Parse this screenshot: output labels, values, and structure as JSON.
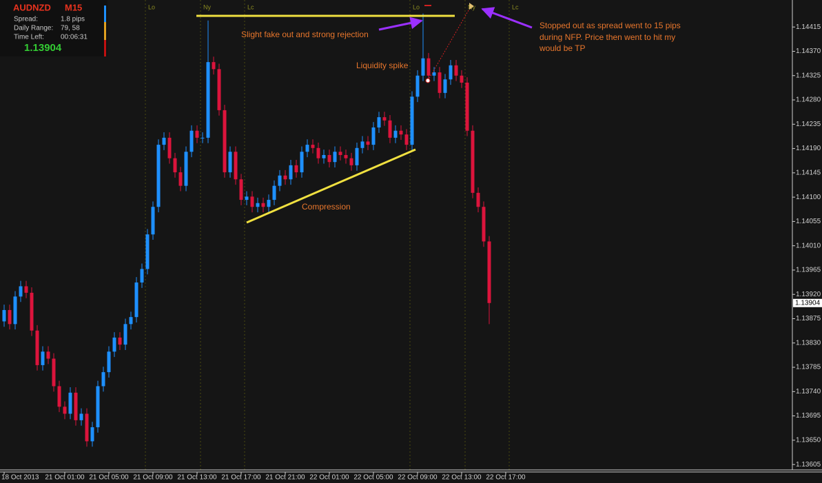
{
  "chart_data": {
    "type": "candlestick",
    "symbol": "AUDNZD",
    "timeframe": "M15",
    "info_rows": [
      [
        "Spread:",
        "1.8 pips"
      ],
      [
        "Daily Range:",
        "79, 58"
      ],
      [
        "Time Left:",
        "00:06:31"
      ]
    ],
    "last_price": 1.13904,
    "session_labels": [
      "Lo",
      "Ny",
      "Lc",
      "Lo",
      "Ny",
      "Lc"
    ],
    "annotations": [
      "Slight fake out and strong rejection",
      "Liquidity spike",
      "Compression",
      "Stopped out as spread went to 15 pips",
      "during NFP. Price then went to hit my",
      "would be TP"
    ],
    "up_color": "#1e90ff",
    "down_color": "#dc143c",
    "ylim": [
      1.13595,
      1.14465
    ],
    "yticks": [
      1.13605,
      {
        "value": 1.1365,
        "label": "1.13650"
      },
      1.13695,
      {
        "value": 1.1374,
        "label": "1.13740"
      },
      1.13785,
      {
        "value": 1.1383,
        "label": "1.13830"
      },
      1.13875,
      {
        "value": 1.1392,
        "label": "1.13920"
      },
      1.13965,
      {
        "value": 1.1401,
        "label": "1.14010"
      },
      1.14055,
      {
        "value": 1.141,
        "label": "1.14100"
      },
      1.14145,
      {
        "value": 1.1419,
        "label": "1.14190"
      },
      1.14235,
      {
        "value": 1.1428,
        "label": "1.14280"
      },
      1.14325,
      {
        "value": 1.1437,
        "label": "1.14370"
      },
      1.14415
    ],
    "categories": [
      "18 Oct 2013",
      null,
      null,
      null,
      null,
      null,
      null,
      null,
      null,
      null,
      null,
      "21 Oct 01:00",
      null,
      null,
      null,
      null,
      null,
      null,
      null,
      "21 Oct 05:00",
      null,
      null,
      null,
      null,
      null,
      null,
      null,
      "21 Oct 09:00",
      null,
      null,
      null,
      null,
      null,
      null,
      null,
      "21 Oct 13:00",
      null,
      null,
      null,
      null,
      null,
      null,
      null,
      "21 Oct 17:00",
      null,
      null,
      null,
      null,
      null,
      null,
      null,
      "21 Oct 21:00",
      null,
      null,
      null,
      null,
      null,
      null,
      null,
      "22 Oct 01:00",
      null,
      null,
      null,
      null,
      null,
      null,
      null,
      "22 Oct 05:00",
      null,
      null,
      null,
      null,
      null,
      null,
      null,
      "22 Oct 09:00",
      null,
      null,
      null,
      null,
      null,
      null,
      null,
      "22 Oct 13:00",
      null,
      null,
      null,
      null,
      null,
      null,
      null,
      "22 Oct 17:00"
    ],
    "open": [
      1.1387,
      1.13891,
      1.13865,
      1.13916,
      1.13935,
      1.13923,
      1.13853,
      1.13789,
      1.13814,
      1.13801,
      1.1375,
      1.13712,
      1.13699,
      1.13738,
      1.13687,
      1.13699,
      1.13648,
      1.13674,
      1.1375,
      1.13776,
      1.13814,
      1.1384,
      1.13827,
      1.13865,
      1.13878,
      1.13942,
      1.13967,
      1.14031,
      1.14082,
      1.14197,
      1.1421,
      1.14172,
      1.14146,
      1.14121,
      1.14184,
      1.14223,
      1.1421,
      1.1421,
      1.1435,
      1.14337,
      1.14261,
      1.14146,
      1.14184,
      1.14133,
      1.14095,
      1.14101,
      1.14082,
      1.14089,
      1.14082,
      1.14095,
      1.14121,
      1.1414,
      1.14133,
      1.14159,
      1.14146,
      1.14184,
      1.14197,
      1.14191,
      1.14172,
      1.14178,
      1.14165,
      1.14184,
      1.14178,
      1.14172,
      1.14159,
      1.14191,
      1.14203,
      1.14197,
      1.14229,
      1.14248,
      1.14242,
      1.1421,
      1.14223,
      1.14216,
      1.14197,
      1.14286,
      1.14325,
      1.14357,
      1.14325,
      1.14331,
      1.14293,
      1.14318,
      1.14344,
      1.14325,
      1.14312,
      1.14223,
      1.14108,
      1.14082,
      1.14018,
      null,
      null,
      null
    ],
    "high": [
      1.13901,
      1.13901,
      1.13926,
      1.13945,
      1.13945,
      1.13933,
      1.13863,
      1.13824,
      1.13824,
      1.13811,
      1.1376,
      1.13722,
      1.13748,
      1.13748,
      1.13709,
      1.13709,
      1.13684,
      1.1376,
      1.13786,
      1.13824,
      1.1385,
      1.1385,
      1.13875,
      1.13888,
      1.13952,
      1.13977,
      1.14041,
      1.14092,
      1.14207,
      1.1422,
      1.1422,
      1.14182,
      1.14156,
      1.14194,
      1.14233,
      1.14233,
      1.1422,
      1.14427,
      1.1436,
      1.14347,
      1.14271,
      1.14194,
      1.14194,
      1.14143,
      1.14111,
      1.14111,
      1.14099,
      1.14099,
      1.14105,
      1.14131,
      1.1415,
      1.1415,
      1.14169,
      1.14169,
      1.14194,
      1.14207,
      1.14207,
      1.14201,
      1.14188,
      1.14188,
      1.14194,
      1.14194,
      1.14188,
      1.14182,
      1.14201,
      1.14213,
      1.14213,
      1.14239,
      1.14258,
      1.14258,
      1.14252,
      1.14233,
      1.14233,
      1.14226,
      1.14296,
      1.14335,
      1.1444,
      1.14367,
      1.14341,
      1.14341,
      1.14328,
      1.14354,
      1.14354,
      1.14335,
      1.14322,
      1.14233,
      1.14118,
      1.14092,
      1.14028,
      null,
      null,
      null
    ],
    "low": [
      1.1386,
      1.13855,
      1.13855,
      1.13906,
      1.13913,
      1.13843,
      1.13779,
      1.13779,
      1.13791,
      1.1374,
      1.13702,
      1.13689,
      1.13689,
      1.13677,
      1.13677,
      1.13638,
      1.13638,
      1.13664,
      1.1374,
      1.13766,
      1.13804,
      1.13817,
      1.13817,
      1.13855,
      1.13868,
      1.13932,
      1.13957,
      1.14021,
      1.14072,
      1.14187,
      1.14162,
      1.14136,
      1.14111,
      1.14111,
      1.14174,
      1.142,
      1.142,
      1.142,
      1.14327,
      1.14251,
      1.14136,
      1.14136,
      1.14123,
      1.14085,
      1.14085,
      1.14072,
      1.14072,
      1.14072,
      1.14072,
      1.14085,
      1.14111,
      1.14123,
      1.14123,
      1.14136,
      1.14136,
      1.14174,
      1.14181,
      1.14162,
      1.14162,
      1.14155,
      1.14155,
      1.14168,
      1.14162,
      1.14149,
      1.14149,
      1.14181,
      1.14187,
      1.14187,
      1.14219,
      1.14232,
      1.142,
      1.142,
      1.14206,
      1.14187,
      1.14187,
      1.14276,
      1.14315,
      1.14315,
      1.14315,
      1.14283,
      1.14283,
      1.14308,
      1.14315,
      1.14302,
      1.14213,
      1.14098,
      1.14072,
      1.14008,
      1.13865,
      null,
      null,
      null
    ],
    "close": [
      1.13891,
      1.13865,
      1.13916,
      1.13935,
      1.13923,
      1.13853,
      1.13789,
      1.13814,
      1.13801,
      1.1375,
      1.13712,
      1.13699,
      1.13738,
      1.13687,
      1.13699,
      1.13648,
      1.13674,
      1.1375,
      1.13776,
      1.13814,
      1.1384,
      1.13827,
      1.13865,
      1.13878,
      1.13942,
      1.13967,
      1.14031,
      1.14082,
      1.14197,
      1.1421,
      1.14172,
      1.14146,
      1.14121,
      1.14184,
      1.14223,
      1.1421,
      1.1421,
      1.1435,
      1.14337,
      1.14261,
      1.14146,
      1.14184,
      1.14133,
      1.14095,
      1.14101,
      1.14082,
      1.14089,
      1.14082,
      1.14095,
      1.14121,
      1.1414,
      1.14133,
      1.14159,
      1.14146,
      1.14184,
      1.14197,
      1.14191,
      1.14172,
      1.14178,
      1.14165,
      1.14184,
      1.14178,
      1.14172,
      1.14159,
      1.14191,
      1.14203,
      1.14197,
      1.14229,
      1.14248,
      1.14242,
      1.1421,
      1.14223,
      1.14216,
      1.14197,
      1.14286,
      1.14325,
      1.14357,
      1.14325,
      1.14331,
      1.14293,
      1.14318,
      1.14344,
      1.14325,
      1.14312,
      1.14223,
      1.14108,
      1.14082,
      1.14018,
      1.13904,
      null,
      null,
      null
    ]
  }
}
